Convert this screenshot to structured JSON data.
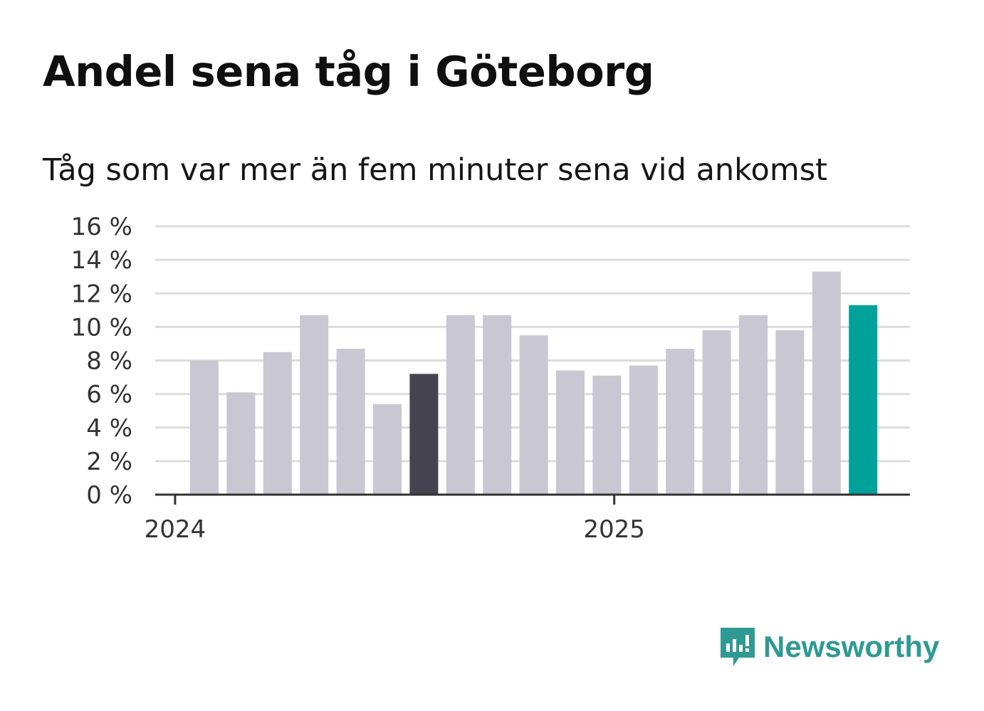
{
  "title": "Andel sena tåg i Göteborg",
  "subtitle": "Tåg som var mer än fem minuter sena vid ankomst",
  "brand": {
    "name": "Newsworthy",
    "icon": "newsworthy-logo-icon",
    "color": "#2e9a93"
  },
  "chart_data": {
    "type": "bar",
    "unit": "%",
    "ylim": [
      0,
      16
    ],
    "yticks": [
      0,
      2,
      4,
      6,
      8,
      10,
      12,
      14,
      16
    ],
    "ytick_labels": [
      "0 %",
      "2 %",
      "4 %",
      "6 %",
      "8 %",
      "10 %",
      "12 %",
      "14 %",
      "16 %"
    ],
    "xtick_labels": [
      "2024",
      "2025"
    ],
    "xtick_positions": [
      0,
      12
    ],
    "grid": true,
    "values": [
      8.0,
      6.1,
      8.5,
      10.7,
      8.7,
      5.4,
      7.2,
      10.7,
      10.7,
      9.5,
      7.4,
      7.1,
      7.7,
      8.7,
      9.8,
      10.7,
      9.8,
      13.3,
      11.3
    ],
    "colors": {
      "default": "#c8c7d2",
      "highlight_dark": "#44434f",
      "highlight_latest": "#00a29a",
      "grid": "#dcdcdc",
      "axis": "#333333"
    },
    "highlight_dark_index": 6,
    "highlight_latest_index": 18
  }
}
